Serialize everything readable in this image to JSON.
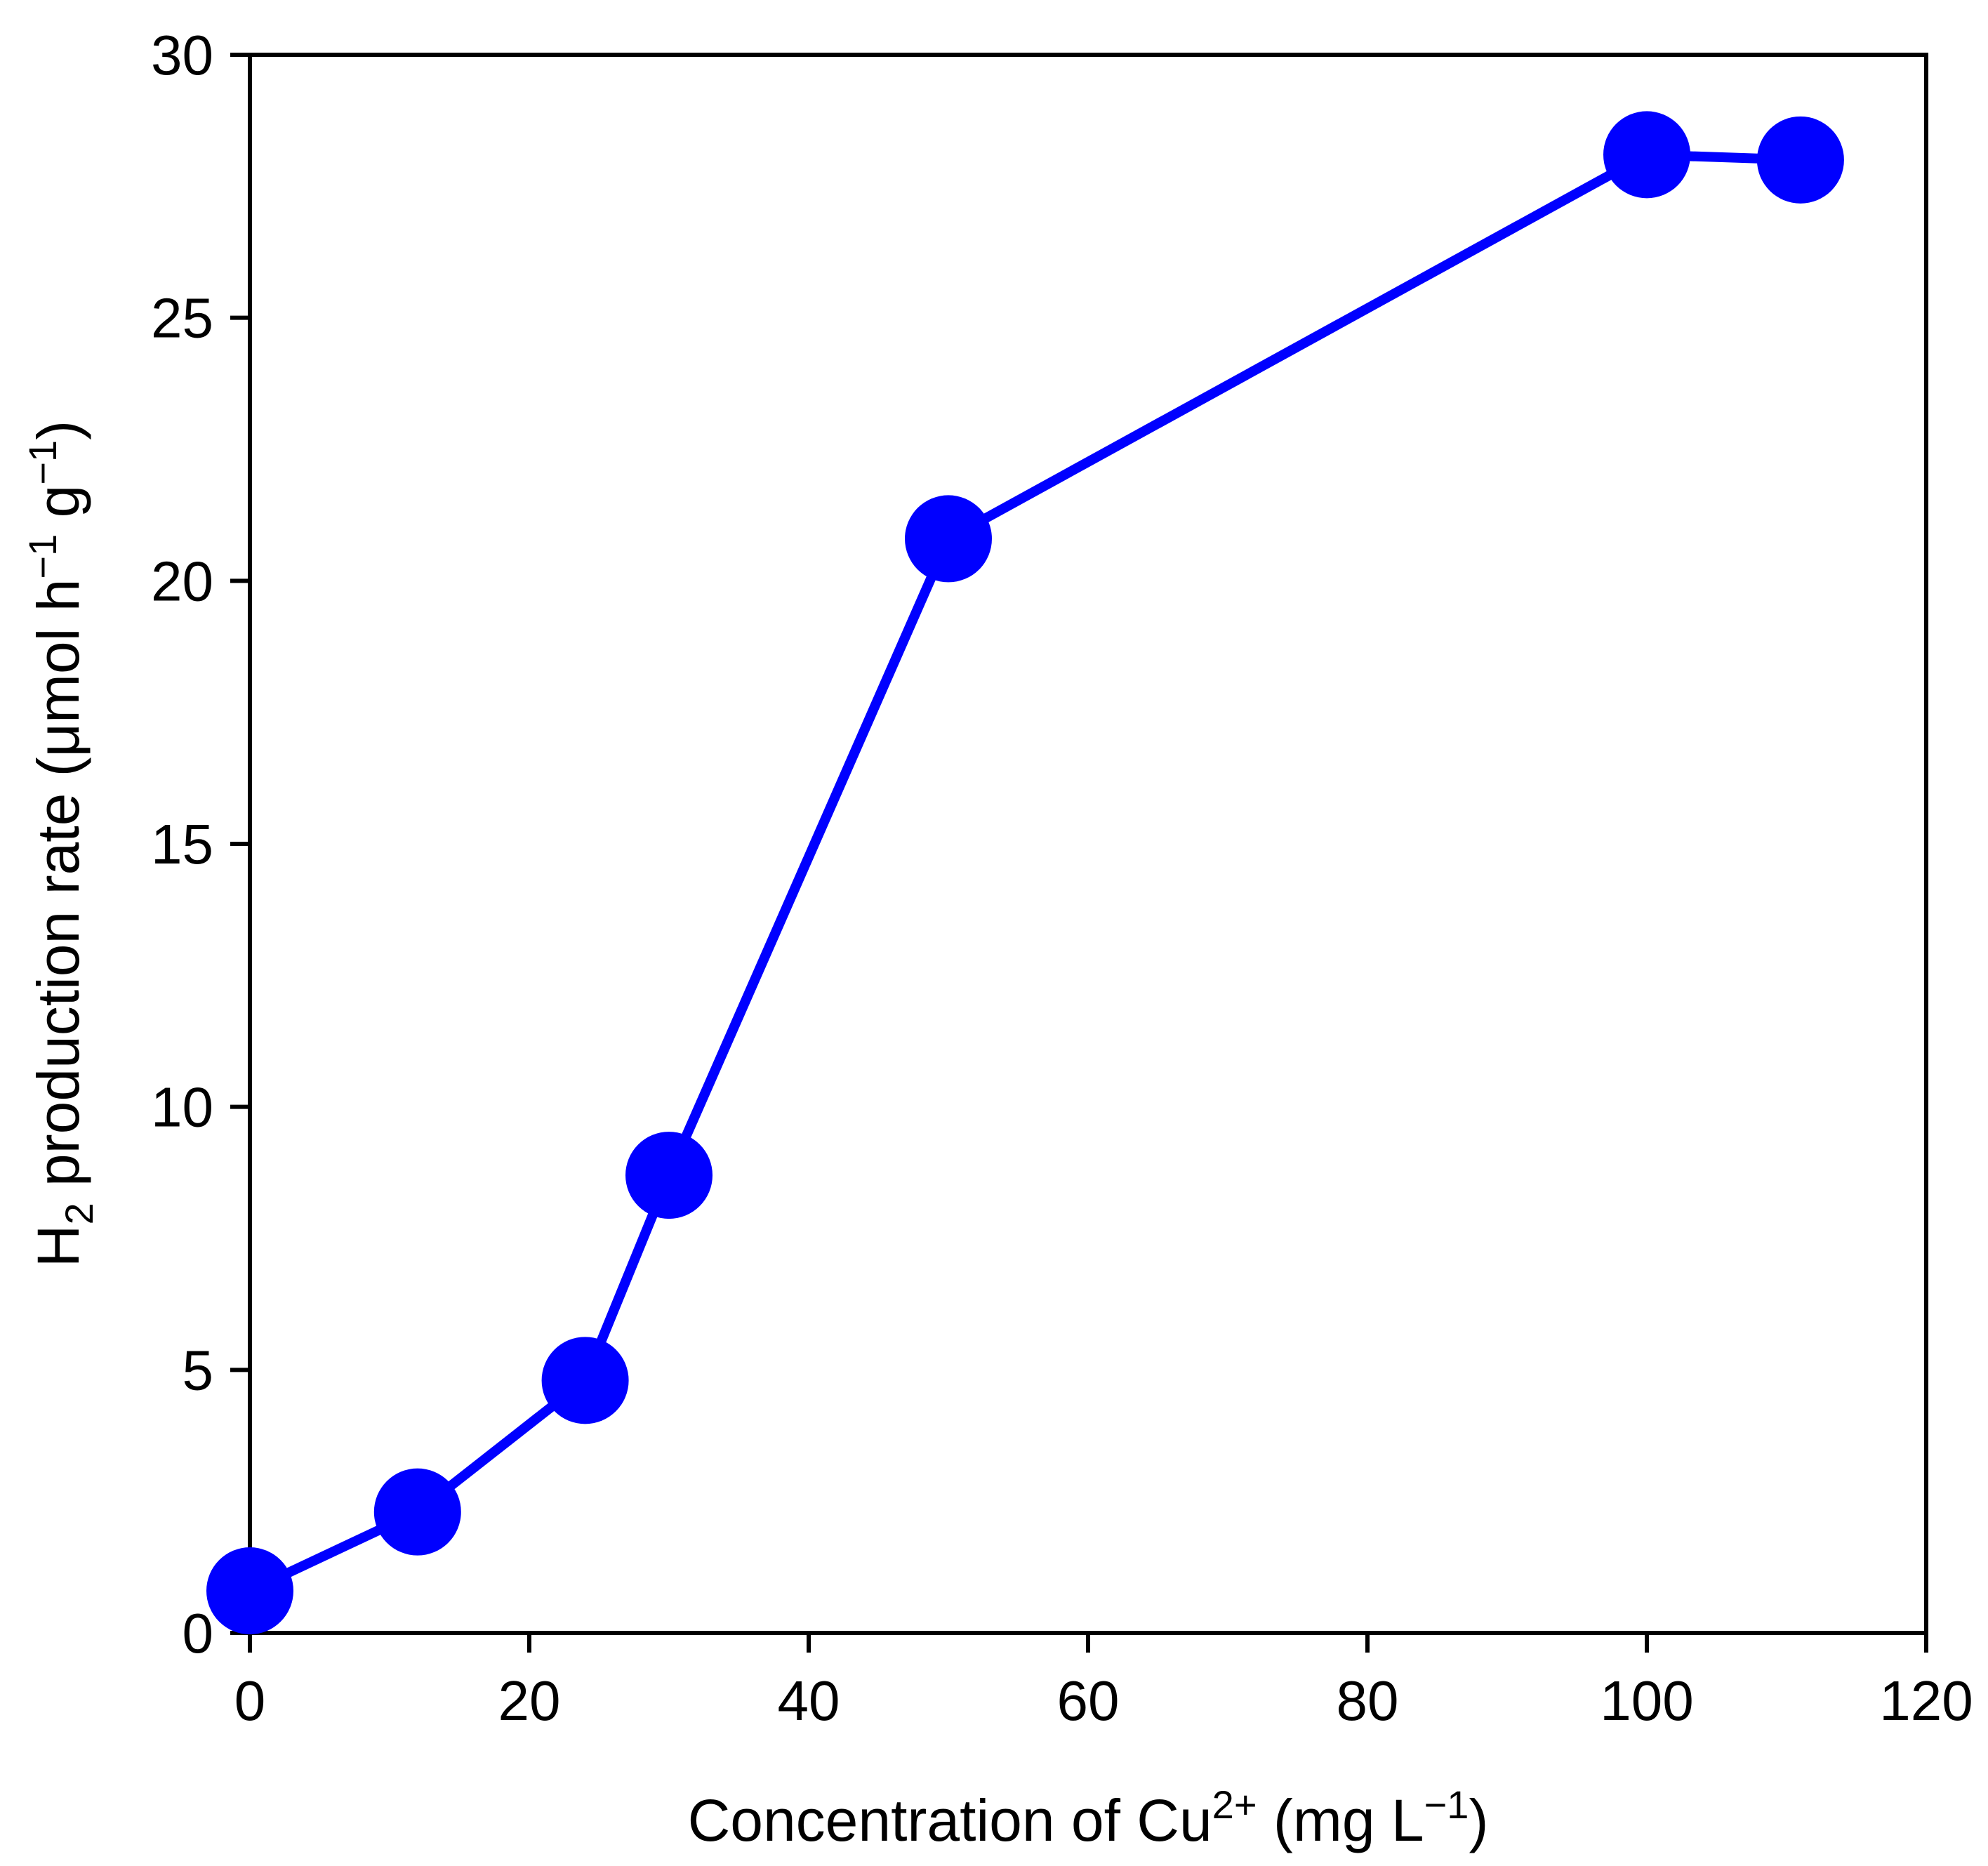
{
  "chart_data": {
    "type": "line",
    "xlabel": {
      "base": "Concentration of Cu",
      "sup": "2+",
      "rest_open": " (mg L",
      "rest_sup": "−1",
      "rest_close": ")"
    },
    "ylabel": {
      "sub_pre": "H",
      "sub": "2",
      "text": " production rate (μmol h",
      "sup1": "−1",
      "mid": " g",
      "sup2": "−1",
      "close": ")"
    },
    "xlim": [
      0,
      120
    ],
    "ylim": [
      0,
      30
    ],
    "xticks": [
      0,
      20,
      40,
      60,
      80,
      100,
      120
    ],
    "yticks": [
      0,
      5,
      10,
      15,
      20,
      25,
      30
    ],
    "grid": false,
    "legend": "none",
    "series": [
      {
        "color": "#0000ff",
        "marker": "circle",
        "x": [
          0,
          12,
          24,
          30,
          50,
          100,
          111
        ],
        "y": [
          0.8,
          2.3,
          4.8,
          8.7,
          20.8,
          28.1,
          28.0
        ]
      }
    ]
  }
}
